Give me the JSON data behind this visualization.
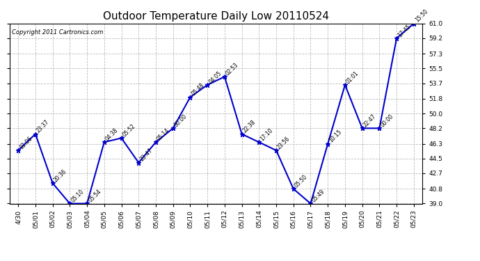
{
  "title": "Outdoor Temperature Daily Low 20110524",
  "copyright": "Copyright 2011 Cartronics.com",
  "x_labels": [
    "4/30",
    "05/01",
    "05/02",
    "05/03",
    "05/04",
    "05/05",
    "05/06",
    "05/07",
    "05/08",
    "05/09",
    "05/10",
    "05/11",
    "05/12",
    "05/13",
    "05/14",
    "05/15",
    "05/16",
    "05/17",
    "05/18",
    "05/19",
    "05/20",
    "05/21",
    "05/22",
    "05/23"
  ],
  "y_values": [
    45.5,
    47.5,
    41.5,
    39.0,
    39.0,
    46.5,
    47.0,
    44.0,
    46.5,
    48.2,
    52.0,
    53.5,
    54.5,
    47.5,
    46.5,
    45.5,
    40.8,
    39.0,
    46.3,
    53.5,
    48.2,
    48.2,
    59.2,
    61.0
  ],
  "point_labels": [
    "03:06",
    "23:37",
    "20:36",
    "05:10",
    "05:54",
    "04:38",
    "05:52",
    "23:47",
    "05:14",
    "00:00",
    "05:48",
    "04:05",
    "02:53",
    "22:38",
    "17:10",
    "23:56",
    "05:50",
    "05:49",
    "10:15",
    "01:01",
    "22:47",
    "00:00",
    "17:45",
    "15:50"
  ],
  "ylim": [
    39.0,
    61.0
  ],
  "yticks": [
    39.0,
    40.8,
    42.7,
    44.5,
    46.3,
    48.2,
    50.0,
    51.8,
    53.7,
    55.5,
    57.3,
    59.2,
    61.0
  ],
  "line_color": "#0000cc",
  "marker_color": "#0000cc",
  "bg_color": "#ffffff",
  "plot_bg_color": "#ffffff",
  "grid_color": "#bbbbbb",
  "title_fontsize": 11,
  "copyright_fontsize": 6,
  "label_fontsize": 5.5,
  "tick_fontsize": 6.5
}
